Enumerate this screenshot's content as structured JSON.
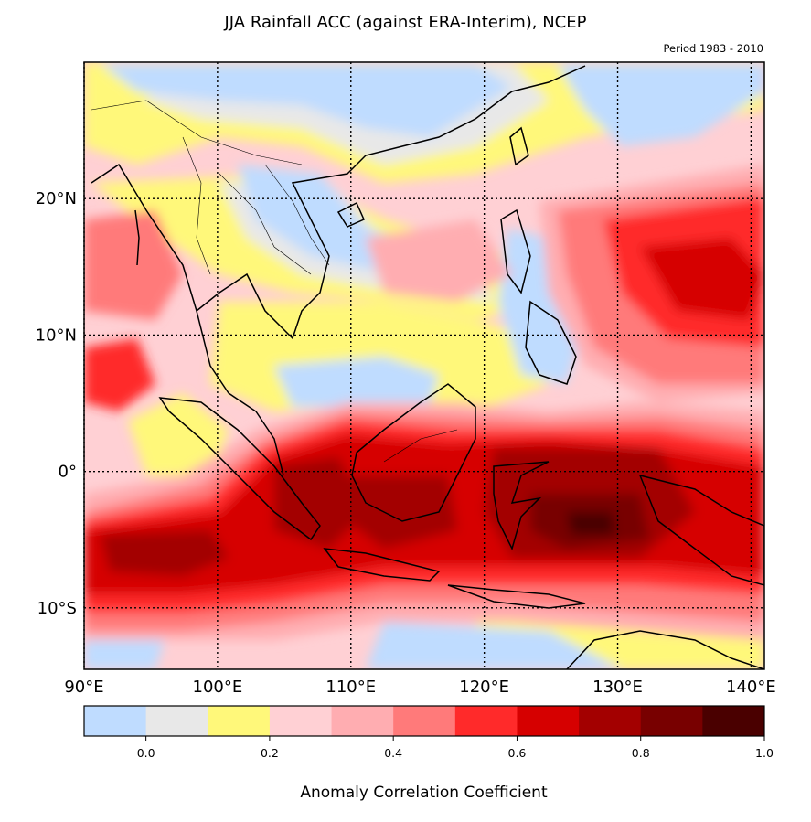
{
  "title": "JJA Rainfall ACC (against ERA-Interim), NCEP",
  "subtitle": "Period 1983 - 2010",
  "map": {
    "lon_range": [
      90,
      141
    ],
    "lat_range": [
      -14.5,
      30
    ],
    "lon_ticks": [
      {
        "value": 90,
        "label": "90°E"
      },
      {
        "value": 100,
        "label": "100°E"
      },
      {
        "value": 110,
        "label": "110°E"
      },
      {
        "value": 120,
        "label": "120°E"
      },
      {
        "value": 130,
        "label": "130°E"
      },
      {
        "value": 140,
        "label": "140°E"
      }
    ],
    "lat_ticks": [
      {
        "value": 20,
        "label": "20°N"
      },
      {
        "value": 10,
        "label": "10°N"
      },
      {
        "value": 0,
        "label": "0°"
      },
      {
        "value": -10,
        "label": "10°S"
      }
    ]
  },
  "colorbar": {
    "label": "Anomaly Correlation Coefficient",
    "levels": [
      -0.1,
      0.0,
      0.1,
      0.2,
      0.3,
      0.4,
      0.5,
      0.6,
      0.7,
      0.8,
      0.9,
      1.0
    ],
    "colors": [
      "#bfdcff",
      "#e8e8e8",
      "#fff87a",
      "#ffd0d4",
      "#ffadb1",
      "#ff7a7a",
      "#ff2a2a",
      "#d60000",
      "#a30000",
      "#780000",
      "#4a0000"
    ],
    "tick_labels": [
      {
        "value": 0.0,
        "label": "0.0"
      },
      {
        "value": 0.2,
        "label": "0.2"
      },
      {
        "value": 0.4,
        "label": "0.4"
      },
      {
        "value": 0.6,
        "label": "0.6"
      },
      {
        "value": 0.8,
        "label": "0.8"
      },
      {
        "value": 1.0,
        "label": "1.0"
      }
    ]
  }
}
